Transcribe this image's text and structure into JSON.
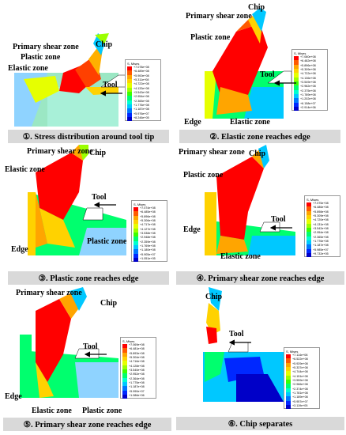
{
  "panels": [
    {
      "caption": "①. Stress distribution around tool tip",
      "labels": {
        "chip": "Chip",
        "primary": "Primary shear zone",
        "plastic": "Plastic zone",
        "elastic": "Elastic zone",
        "tool": "Tool"
      },
      "legend": {
        "title": "S, Mises",
        "values": [
          "+7.078e+08",
          "+6.489e+08",
          "+5.900e+08",
          "+5.311e+08",
          "+4.722e+08",
          "+4.133e+08",
          "+3.543e+08",
          "+2.954e+08",
          "+2.365e+08",
          "+1.776e+08",
          "+1.187e+08",
          "+5.976e+07",
          "+8.246e+05"
        ]
      }
    },
    {
      "caption": "②. Elastic zone reaches edge",
      "labels": {
        "chip": "Chip",
        "primary": "Primary shear zone",
        "plastic": "Plastic zone",
        "elastic": "Elastic zone",
        "edge": "Edge",
        "tool": "Tool"
      },
      "legend": {
        "title": "S, Mises",
        "values": [
          "+7.060e+08",
          "+6.482e+08",
          "+5.896e+08",
          "+5.309e+08",
          "+4.722e+08",
          "+4.136e+08",
          "+3.549e+08",
          "+2.962e+08",
          "+2.375e+08",
          "+1.789e+08",
          "+1.202e+08",
          "+6.158e+07",
          "+2.914e+06"
        ]
      }
    },
    {
      "caption": "③. Plastic zone reaches edge",
      "labels": {
        "chip": "Chip",
        "primary": "Primary shear zone",
        "elastic": "Elastic zone",
        "plastic": "Plastic zone",
        "edge": "Edge",
        "tool": "Tool"
      },
      "legend": {
        "title": "S, Mises",
        "values": [
          "+7.074e+08",
          "+6.485e+08",
          "+5.896e+08",
          "+5.306e+08",
          "+4.717e+08",
          "+4.127e+08",
          "+3.538e+08",
          "+2.948e+08",
          "+2.359e+08",
          "+1.769e+08",
          "+1.180e+08",
          "+5.905e+07",
          "+1.051e+05"
        ]
      }
    },
    {
      "caption": "④. Primary shear zone reaches edge",
      "labels": {
        "chip": "Chip",
        "primary": "Primary shear zone",
        "plastic": "Plastic zone",
        "elastic": "Elastic zone",
        "edge": "Edge",
        "tool": "Tool"
      },
      "legend": {
        "title": "S, Mises",
        "values": [
          "+7.075e+08",
          "+6.486e+08",
          "+5.898e+08",
          "+5.309e+08",
          "+4.720e+08",
          "+4.131e+08",
          "+3.542e+08",
          "+2.954e+08",
          "+2.365e+08",
          "+1.776e+08",
          "+1.187e+08",
          "+5.985e+07",
          "+9.732e+05"
        ]
      }
    },
    {
      "caption": "⑤. Primary shear zone reaches edge",
      "labels": {
        "chip": "Chip",
        "primary": "Primary shear zone",
        "plastic": "Plastic zone",
        "elastic": "Elastic zone",
        "edge": "Edge",
        "tool": "Tool"
      },
      "legend": {
        "title": "S, Mises",
        "values": [
          "+7.069e+08",
          "+6.481e+08",
          "+5.893e+08",
          "+5.304e+08",
          "+4.716e+08",
          "+4.128e+08",
          "+3.540e+08",
          "+2.952e+08",
          "+2.364e+08",
          "+1.775e+08",
          "+1.187e+08",
          "+5.990e+07",
          "+1.086e+06"
        ]
      }
    },
    {
      "caption": "⑥. Chip separates",
      "labels": {
        "chip": "Chip",
        "tool": "Tool"
      },
      "legend": {
        "title": "S, Mises",
        "values": [
          "+7.114e+08",
          "+6.522e+08",
          "+5.929e+08",
          "+5.337e+08",
          "+4.744e+08",
          "+4.151e+08",
          "+3.559e+08",
          "+2.966e+08",
          "+2.374e+08",
          "+1.781e+08",
          "+1.189e+08",
          "+5.957e+07",
          "+3.119e+05"
        ]
      }
    }
  ],
  "palette": [
    "#ff0000",
    "#ff5a00",
    "#ffa500",
    "#ffd200",
    "#e6ff00",
    "#9bff00",
    "#3cff00",
    "#00ff6e",
    "#00ffd0",
    "#00c8ff",
    "#0078ff",
    "#0028ff",
    "#0000c8"
  ]
}
